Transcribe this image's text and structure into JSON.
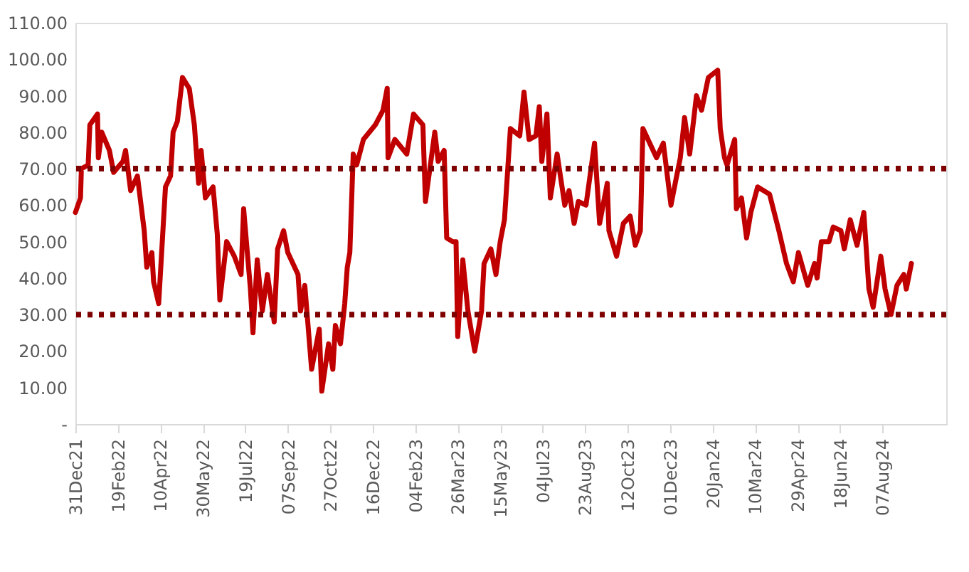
{
  "chart_data": {
    "type": "line",
    "line_style": "solid",
    "marker": "none",
    "grid": false,
    "xlim": [
      "2021-12-31",
      "2024-10-21"
    ],
    "xticks": [
      {
        "value": "2021-12-31",
        "label": "31Dec21"
      },
      {
        "value": "2022-02-19",
        "label": "19Feb22"
      },
      {
        "value": "2022-04-10",
        "label": "10Apr22"
      },
      {
        "value": "2022-05-30",
        "label": "30May22"
      },
      {
        "value": "2022-07-19",
        "label": "19Jul22"
      },
      {
        "value": "2022-09-07",
        "label": "07Sep22"
      },
      {
        "value": "2022-10-27",
        "label": "27Oct22"
      },
      {
        "value": "2022-12-16",
        "label": "16Dec22"
      },
      {
        "value": "2023-02-04",
        "label": "04Feb23"
      },
      {
        "value": "2023-03-26",
        "label": "26Mar23"
      },
      {
        "value": "2023-05-15",
        "label": "15May23"
      },
      {
        "value": "2023-07-04",
        "label": "04Jul23"
      },
      {
        "value": "2023-08-23",
        "label": "23Aug23"
      },
      {
        "value": "2023-10-12",
        "label": "12Oct23"
      },
      {
        "value": "2023-12-01",
        "label": "01Dec23"
      },
      {
        "value": "2024-01-20",
        "label": "20Jan24"
      },
      {
        "value": "2024-03-10",
        "label": "10Mar24"
      },
      {
        "value": "2024-04-29",
        "label": "29Apr24"
      },
      {
        "value": "2024-06-18",
        "label": "18Jun24"
      },
      {
        "value": "2024-08-07",
        "label": "07Aug24"
      }
    ],
    "ylim": [
      0,
      110
    ],
    "yticks": [
      {
        "value": 0,
        "label": "-"
      },
      {
        "value": 10,
        "label": "10.00"
      },
      {
        "value": 20,
        "label": "20.00"
      },
      {
        "value": 30,
        "label": "30.00"
      },
      {
        "value": 40,
        "label": "40.00"
      },
      {
        "value": 50,
        "label": "50.00"
      },
      {
        "value": 60,
        "label": "60.00"
      },
      {
        "value": 70,
        "label": "70.00"
      },
      {
        "value": 80,
        "label": "80.00"
      },
      {
        "value": 90,
        "label": "90.00"
      },
      {
        "value": 100,
        "label": "100.00"
      },
      {
        "value": 110,
        "label": "110.00"
      }
    ],
    "ref_lines": [
      {
        "axis": "y",
        "value": 70,
        "color": "#7f0000",
        "line_style": "dotted"
      },
      {
        "axis": "y",
        "value": 30,
        "color": "#7f0000",
        "line_style": "dotted"
      }
    ],
    "series": [
      {
        "color": "#c00000",
        "x": [
          "2021-12-31",
          "2022-01-06",
          "2022-01-07",
          "2022-01-15",
          "2022-01-17",
          "2022-01-26",
          "2022-01-27",
          "2022-01-31",
          "2022-02-09",
          "2022-02-14",
          "2022-02-25",
          "2022-02-28",
          "2022-03-06",
          "2022-03-14",
          "2022-03-22",
          "2022-03-25",
          "2022-03-31",
          "2022-04-02",
          "2022-04-08",
          "2022-04-16",
          "2022-04-22",
          "2022-04-25",
          "2022-04-30",
          "2022-05-06",
          "2022-05-14",
          "2022-05-20",
          "2022-05-25",
          "2022-05-28",
          "2022-06-02",
          "2022-06-11",
          "2022-06-16",
          "2022-06-19",
          "2022-06-27",
          "2022-07-06",
          "2022-07-14",
          "2022-07-17",
          "2022-07-25",
          "2022-07-28",
          "2022-08-02",
          "2022-08-08",
          "2022-08-14",
          "2022-08-22",
          "2022-08-26",
          "2022-09-02",
          "2022-09-07",
          "2022-09-19",
          "2022-09-22",
          "2022-09-27",
          "2022-10-05",
          "2022-10-14",
          "2022-10-17",
          "2022-10-25",
          "2022-10-30",
          "2022-11-02",
          "2022-11-08",
          "2022-11-13",
          "2022-11-16",
          "2022-11-19",
          "2022-11-23",
          "2022-11-27",
          "2022-12-05",
          "2022-12-19",
          "2022-12-28",
          "2023-01-02",
          "2023-01-03",
          "2023-01-11",
          "2023-01-25",
          "2023-02-02",
          "2023-02-13",
          "2023-02-16",
          "2023-02-27",
          "2023-03-03",
          "2023-03-10",
          "2023-03-13",
          "2023-03-20",
          "2023-03-24",
          "2023-03-26",
          "2023-04-01",
          "2023-04-07",
          "2023-04-15",
          "2023-04-23",
          "2023-04-26",
          "2023-05-04",
          "2023-05-10",
          "2023-05-15",
          "2023-05-20",
          "2023-05-27",
          "2023-06-07",
          "2023-06-12",
          "2023-06-18",
          "2023-06-26",
          "2023-06-30",
          "2023-07-03",
          "2023-07-09",
          "2023-07-13",
          "2023-07-21",
          "2023-07-30",
          "2023-08-04",
          "2023-08-10",
          "2023-08-15",
          "2023-08-24",
          "2023-09-03",
          "2023-09-09",
          "2023-09-18",
          "2023-09-20",
          "2023-09-29",
          "2023-10-07",
          "2023-10-15",
          "2023-10-21",
          "2023-10-27",
          "2023-10-30",
          "2023-11-07",
          "2023-11-15",
          "2023-11-23",
          "2023-12-02",
          "2023-12-07",
          "2023-12-13",
          "2023-12-18",
          "2023-12-24",
          "2024-01-01",
          "2024-01-07",
          "2024-01-15",
          "2024-01-26",
          "2024-01-29",
          "2024-02-03",
          "2024-02-06",
          "2024-02-15",
          "2024-02-17",
          "2024-02-23",
          "2024-02-29",
          "2024-03-05",
          "2024-03-13",
          "2024-03-27",
          "2024-04-07",
          "2024-04-16",
          "2024-04-24",
          "2024-04-30",
          "2024-05-11",
          "2024-05-19",
          "2024-05-22",
          "2024-05-27",
          "2024-06-05",
          "2024-06-10",
          "2024-06-19",
          "2024-06-23",
          "2024-06-30",
          "2024-07-08",
          "2024-07-16",
          "2024-07-22",
          "2024-07-27",
          "2024-08-05",
          "2024-08-10",
          "2024-08-17",
          "2024-08-24",
          "2024-09-01",
          "2024-09-04",
          "2024-09-10"
        ],
        "values": [
          58,
          62,
          70,
          71,
          82,
          85,
          73,
          80,
          75,
          69,
          72,
          75,
          64,
          68,
          53,
          43,
          47,
          39,
          33,
          65,
          68,
          80,
          83,
          95,
          92,
          82,
          66,
          75,
          62,
          65,
          52,
          34,
          50,
          46,
          41,
          59,
          37,
          25,
          45,
          31,
          41,
          28,
          48,
          53,
          47,
          41,
          31,
          38,
          15,
          26,
          9,
          22,
          15,
          27,
          22,
          33,
          43,
          47,
          74,
          71,
          78,
          82,
          86,
          92,
          73,
          78,
          74,
          85,
          82,
          61,
          80,
          72,
          75,
          51,
          50,
          50,
          24,
          45,
          31,
          20,
          31,
          44,
          48,
          41,
          50,
          56,
          81,
          79,
          91,
          78,
          79,
          87,
          72,
          85,
          62,
          74,
          60,
          64,
          55,
          61,
          60,
          77,
          55,
          66,
          53,
          46,
          55,
          57,
          49,
          53,
          81,
          77,
          73,
          77,
          60,
          66,
          73,
          84,
          74,
          90,
          86,
          95,
          97,
          81,
          73,
          71,
          78,
          59,
          62,
          51,
          58,
          65,
          63,
          53,
          44,
          39,
          47,
          38,
          44,
          40,
          50,
          50,
          54,
          53,
          48,
          56,
          49,
          58,
          37,
          32,
          46,
          37,
          30,
          38,
          41,
          37,
          44
        ]
      }
    ]
  }
}
